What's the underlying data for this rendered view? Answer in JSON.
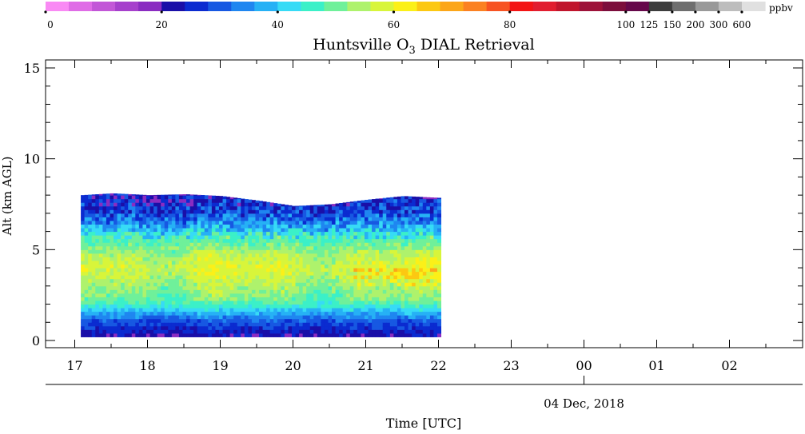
{
  "chart_data": {
    "type": "heatmap",
    "title_parts": {
      "pre": "Huntsville O",
      "sub": "3",
      "post": " DIAL Retrieval"
    },
    "xlabel": "Time [UTC]",
    "ylabel": "Alt (km AGL)",
    "date_label": "04 Dec, 2018",
    "x_ticks": [
      "17",
      "18",
      "19",
      "20",
      "21",
      "22",
      "23",
      "00",
      "01",
      "02"
    ],
    "y_ticks": [
      "0",
      "5",
      "10",
      "15"
    ],
    "ylim": [
      0,
      15.5
    ],
    "xlim_hours_utc": [
      "17:00",
      "02:50"
    ],
    "data_extent": {
      "start_utc": "17:05",
      "end_utc": "22:00",
      "min_alt_km": 0.2,
      "max_alt_km": 8.1
    },
    "colorbar": {
      "unit": "ppbv",
      "tick_labels": [
        "0",
        "20",
        "40",
        "60",
        "80",
        "100",
        "125",
        "150",
        "200",
        "300",
        "600"
      ],
      "colors": [
        "#f98af4",
        "#df6ce6",
        "#c257d7",
        "#a640cc",
        "#8a2cc1",
        "#1a0fa8",
        "#0b2bd0",
        "#1758e2",
        "#1f86f0",
        "#26b1f5",
        "#37dbf6",
        "#3bf0c8",
        "#6ff09a",
        "#aef26c",
        "#d8f53a",
        "#fbf018",
        "#fcc812",
        "#fca619",
        "#fb8122",
        "#f75322",
        "#f31414",
        "#e11d2f",
        "#c0152c",
        "#9d1239",
        "#7c0e3c",
        "#66084a",
        "#3d3d3d",
        "#6e6e6e",
        "#999999",
        "#bdbdbd",
        "#e0e0e0"
      ]
    },
    "profile_ppbv": [
      {
        "alt_km": 0.2,
        "ppbv": 22
      },
      {
        "alt_km": 0.6,
        "ppbv": 26
      },
      {
        "alt_km": 1.0,
        "ppbv": 30
      },
      {
        "alt_km": 1.4,
        "ppbv": 37
      },
      {
        "alt_km": 1.8,
        "ppbv": 45
      },
      {
        "alt_km": 2.2,
        "ppbv": 50
      },
      {
        "alt_km": 2.6,
        "ppbv": 52
      },
      {
        "alt_km": 3.0,
        "ppbv": 54
      },
      {
        "alt_km": 3.4,
        "ppbv": 56
      },
      {
        "alt_km": 3.8,
        "ppbv": 58
      },
      {
        "alt_km": 4.2,
        "ppbv": 57
      },
      {
        "alt_km": 4.6,
        "ppbv": 55
      },
      {
        "alt_km": 5.0,
        "ppbv": 52
      },
      {
        "alt_km": 5.4,
        "ppbv": 48
      },
      {
        "alt_km": 5.8,
        "ppbv": 43
      },
      {
        "alt_km": 6.2,
        "ppbv": 37
      },
      {
        "alt_km": 6.6,
        "ppbv": 32
      },
      {
        "alt_km": 7.0,
        "ppbv": 28
      },
      {
        "alt_km": 7.4,
        "ppbv": 26
      },
      {
        "alt_km": 7.8,
        "ppbv": 24
      }
    ],
    "top_boundary_km": [
      {
        "t": "17:05",
        "alt_km": 8.0
      },
      {
        "t": "17:30",
        "alt_km": 8.1
      },
      {
        "t": "18:00",
        "alt_km": 8.0
      },
      {
        "t": "18:30",
        "alt_km": 8.05
      },
      {
        "t": "19:00",
        "alt_km": 7.95
      },
      {
        "t": "19:30",
        "alt_km": 7.7
      },
      {
        "t": "20:00",
        "alt_km": 7.4
      },
      {
        "t": "20:30",
        "alt_km": 7.5
      },
      {
        "t": "21:00",
        "alt_km": 7.75
      },
      {
        "t": "21:30",
        "alt_km": 7.95
      },
      {
        "t": "22:00",
        "alt_km": 7.85
      }
    ],
    "grid": false
  }
}
